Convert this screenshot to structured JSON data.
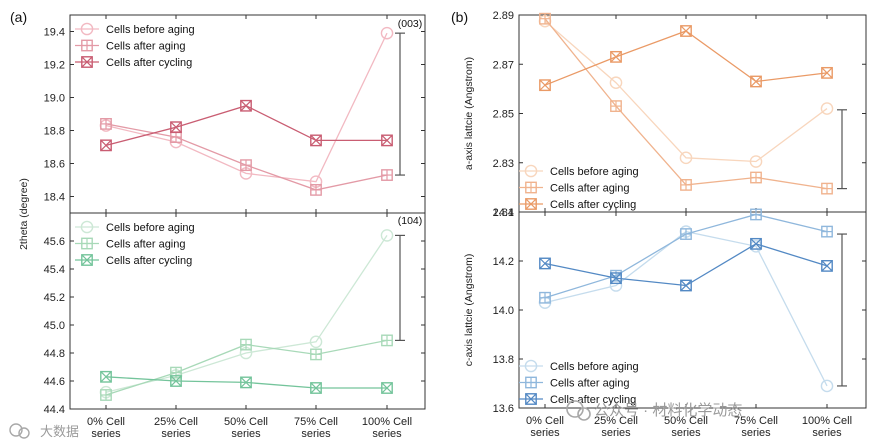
{
  "panel_labels": [
    "(a)",
    "(b)"
  ],
  "watermark": {
    "text": "公众号 · 材料化学动态",
    "corner_text": "大数据"
  },
  "colors": {
    "pink_before": "#f2b9c2",
    "pink_after": "#e39aa6",
    "pink_cycling": "#c95d72",
    "green_before": "#cde8d6",
    "green_after": "#a8d9b8",
    "green_cycling": "#74c49b",
    "orange_before": "#f8d6bd",
    "orange_after": "#f0b38e",
    "orange_cycling": "#ea9a66",
    "blue_before": "#c5dced",
    "blue_after": "#8fb7dc",
    "blue_cycling": "#5389c4"
  },
  "chart_data": [
    {
      "id": "a-top",
      "type": "line",
      "panel": "(a)",
      "categories": [
        "0% Cell series",
        "25% Cell series",
        "50% Cell series",
        "75% Cell series",
        "100% Cell series"
      ],
      "ylim": [
        18.3,
        19.5
      ],
      "yticks": [
        "18.4",
        "18.6",
        "18.8",
        "19.0",
        "19.2",
        "19.4"
      ],
      "ylabel": "2theta (degree)",
      "annotation": "(003)",
      "range_bar": [
        18.53,
        19.39
      ],
      "series": [
        {
          "name": "Cells before aging",
          "marker": "circle",
          "color": "pink_before",
          "values": [
            18.83,
            18.73,
            18.54,
            18.49,
            19.39
          ]
        },
        {
          "name": "Cells after aging",
          "marker": "plus-square",
          "color": "pink_after",
          "values": [
            18.84,
            18.76,
            18.59,
            18.44,
            18.53
          ]
        },
        {
          "name": "Cells after cycling",
          "marker": "x-square",
          "color": "pink_cycling",
          "values": [
            18.71,
            18.82,
            18.95,
            18.74,
            18.74
          ]
        }
      ]
    },
    {
      "id": "a-bottom",
      "type": "line",
      "panel": "(a)",
      "categories": [
        "0% Cell series",
        "25% Cell series",
        "50% Cell series",
        "75% Cell series",
        "100% Cell series"
      ],
      "ylim": [
        44.4,
        45.8
      ],
      "yticks": [
        "44.4",
        "44.6",
        "44.8",
        "45.0",
        "45.2",
        "45.4",
        "45.6"
      ],
      "ylabel": "2theta (degree)",
      "annotation": "(104)",
      "range_bar": [
        44.89,
        45.64
      ],
      "series": [
        {
          "name": "Cells before aging",
          "marker": "circle",
          "color": "green_before",
          "values": [
            44.52,
            44.64,
            44.8,
            44.88,
            45.64
          ]
        },
        {
          "name": "Cells after aging",
          "marker": "plus-square",
          "color": "green_after",
          "values": [
            44.5,
            44.66,
            44.86,
            44.79,
            44.89
          ]
        },
        {
          "name": "Cells after cycling",
          "marker": "x-square",
          "color": "green_cycling",
          "values": [
            44.63,
            44.6,
            44.59,
            44.55,
            44.55
          ]
        }
      ]
    },
    {
      "id": "b-top",
      "type": "line",
      "panel": "(b)",
      "categories": [
        "0% Cell series",
        "25% Cell series",
        "50% Cell series",
        "75% Cell series",
        "100% Cell series"
      ],
      "ylim": [
        2.81,
        2.89
      ],
      "yticks": [
        "2.81",
        "2.83",
        "2.85",
        "2.87",
        "2.89"
      ],
      "ylabel": "a-axis lattcie (Angstrom)",
      "range_bar": [
        2.8195,
        2.8515
      ],
      "series": [
        {
          "name": "Cells before aging",
          "marker": "circle",
          "color": "orange_before",
          "values": [
            2.8875,
            2.8625,
            2.832,
            2.8305,
            2.852
          ]
        },
        {
          "name": "Cells after aging",
          "marker": "plus-square",
          "color": "orange_after",
          "values": [
            2.8885,
            2.853,
            2.821,
            2.824,
            2.8195
          ]
        },
        {
          "name": "Cells after cycling",
          "marker": "x-square",
          "color": "orange_cycling",
          "values": [
            2.8615,
            2.873,
            2.8835,
            2.863,
            2.8665
          ]
        }
      ]
    },
    {
      "id": "b-bottom",
      "type": "line",
      "panel": "(b)",
      "categories": [
        "0% Cell series",
        "25% Cell series",
        "50% Cell series",
        "75% Cell series",
        "100% Cell series"
      ],
      "ylim": [
        13.6,
        14.4
      ],
      "yticks": [
        "13.6",
        "13.8",
        "14.0",
        "14.2",
        "14.4"
      ],
      "ylabel": "c-axis lattcie (Angstrom)",
      "range_bar": [
        13.69,
        14.31
      ],
      "series": [
        {
          "name": "Cells before aging",
          "marker": "circle",
          "color": "blue_before",
          "values": [
            14.03,
            14.1,
            14.32,
            14.26,
            13.69
          ]
        },
        {
          "name": "Cells after aging",
          "marker": "plus-square",
          "color": "blue_after",
          "values": [
            14.05,
            14.14,
            14.31,
            14.39,
            14.32
          ]
        },
        {
          "name": "Cells after cycling",
          "marker": "x-square",
          "color": "blue_cycling",
          "values": [
            14.19,
            14.13,
            14.1,
            14.27,
            14.18
          ]
        }
      ]
    }
  ]
}
